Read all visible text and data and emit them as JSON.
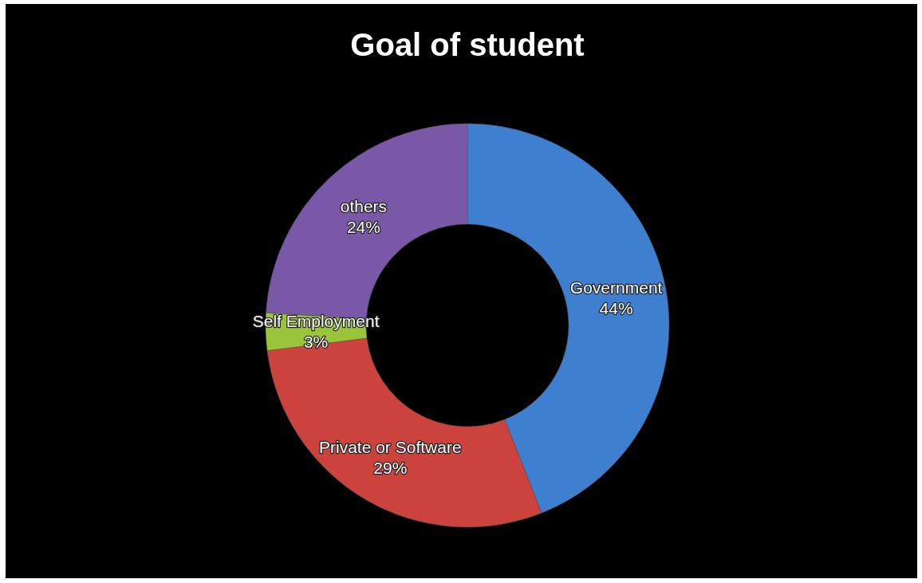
{
  "chart_data": {
    "type": "donut",
    "title": "Goal of student",
    "categories": [
      "Government",
      "Private or Software",
      "Self Employment",
      "others"
    ],
    "values": [
      44,
      29,
      3,
      24
    ],
    "value_labels": [
      "44%",
      "29%",
      "3%",
      "24%"
    ],
    "colors": [
      "#3f7fd0",
      "#cc423d",
      "#9ac43a",
      "#7a58a8"
    ]
  }
}
